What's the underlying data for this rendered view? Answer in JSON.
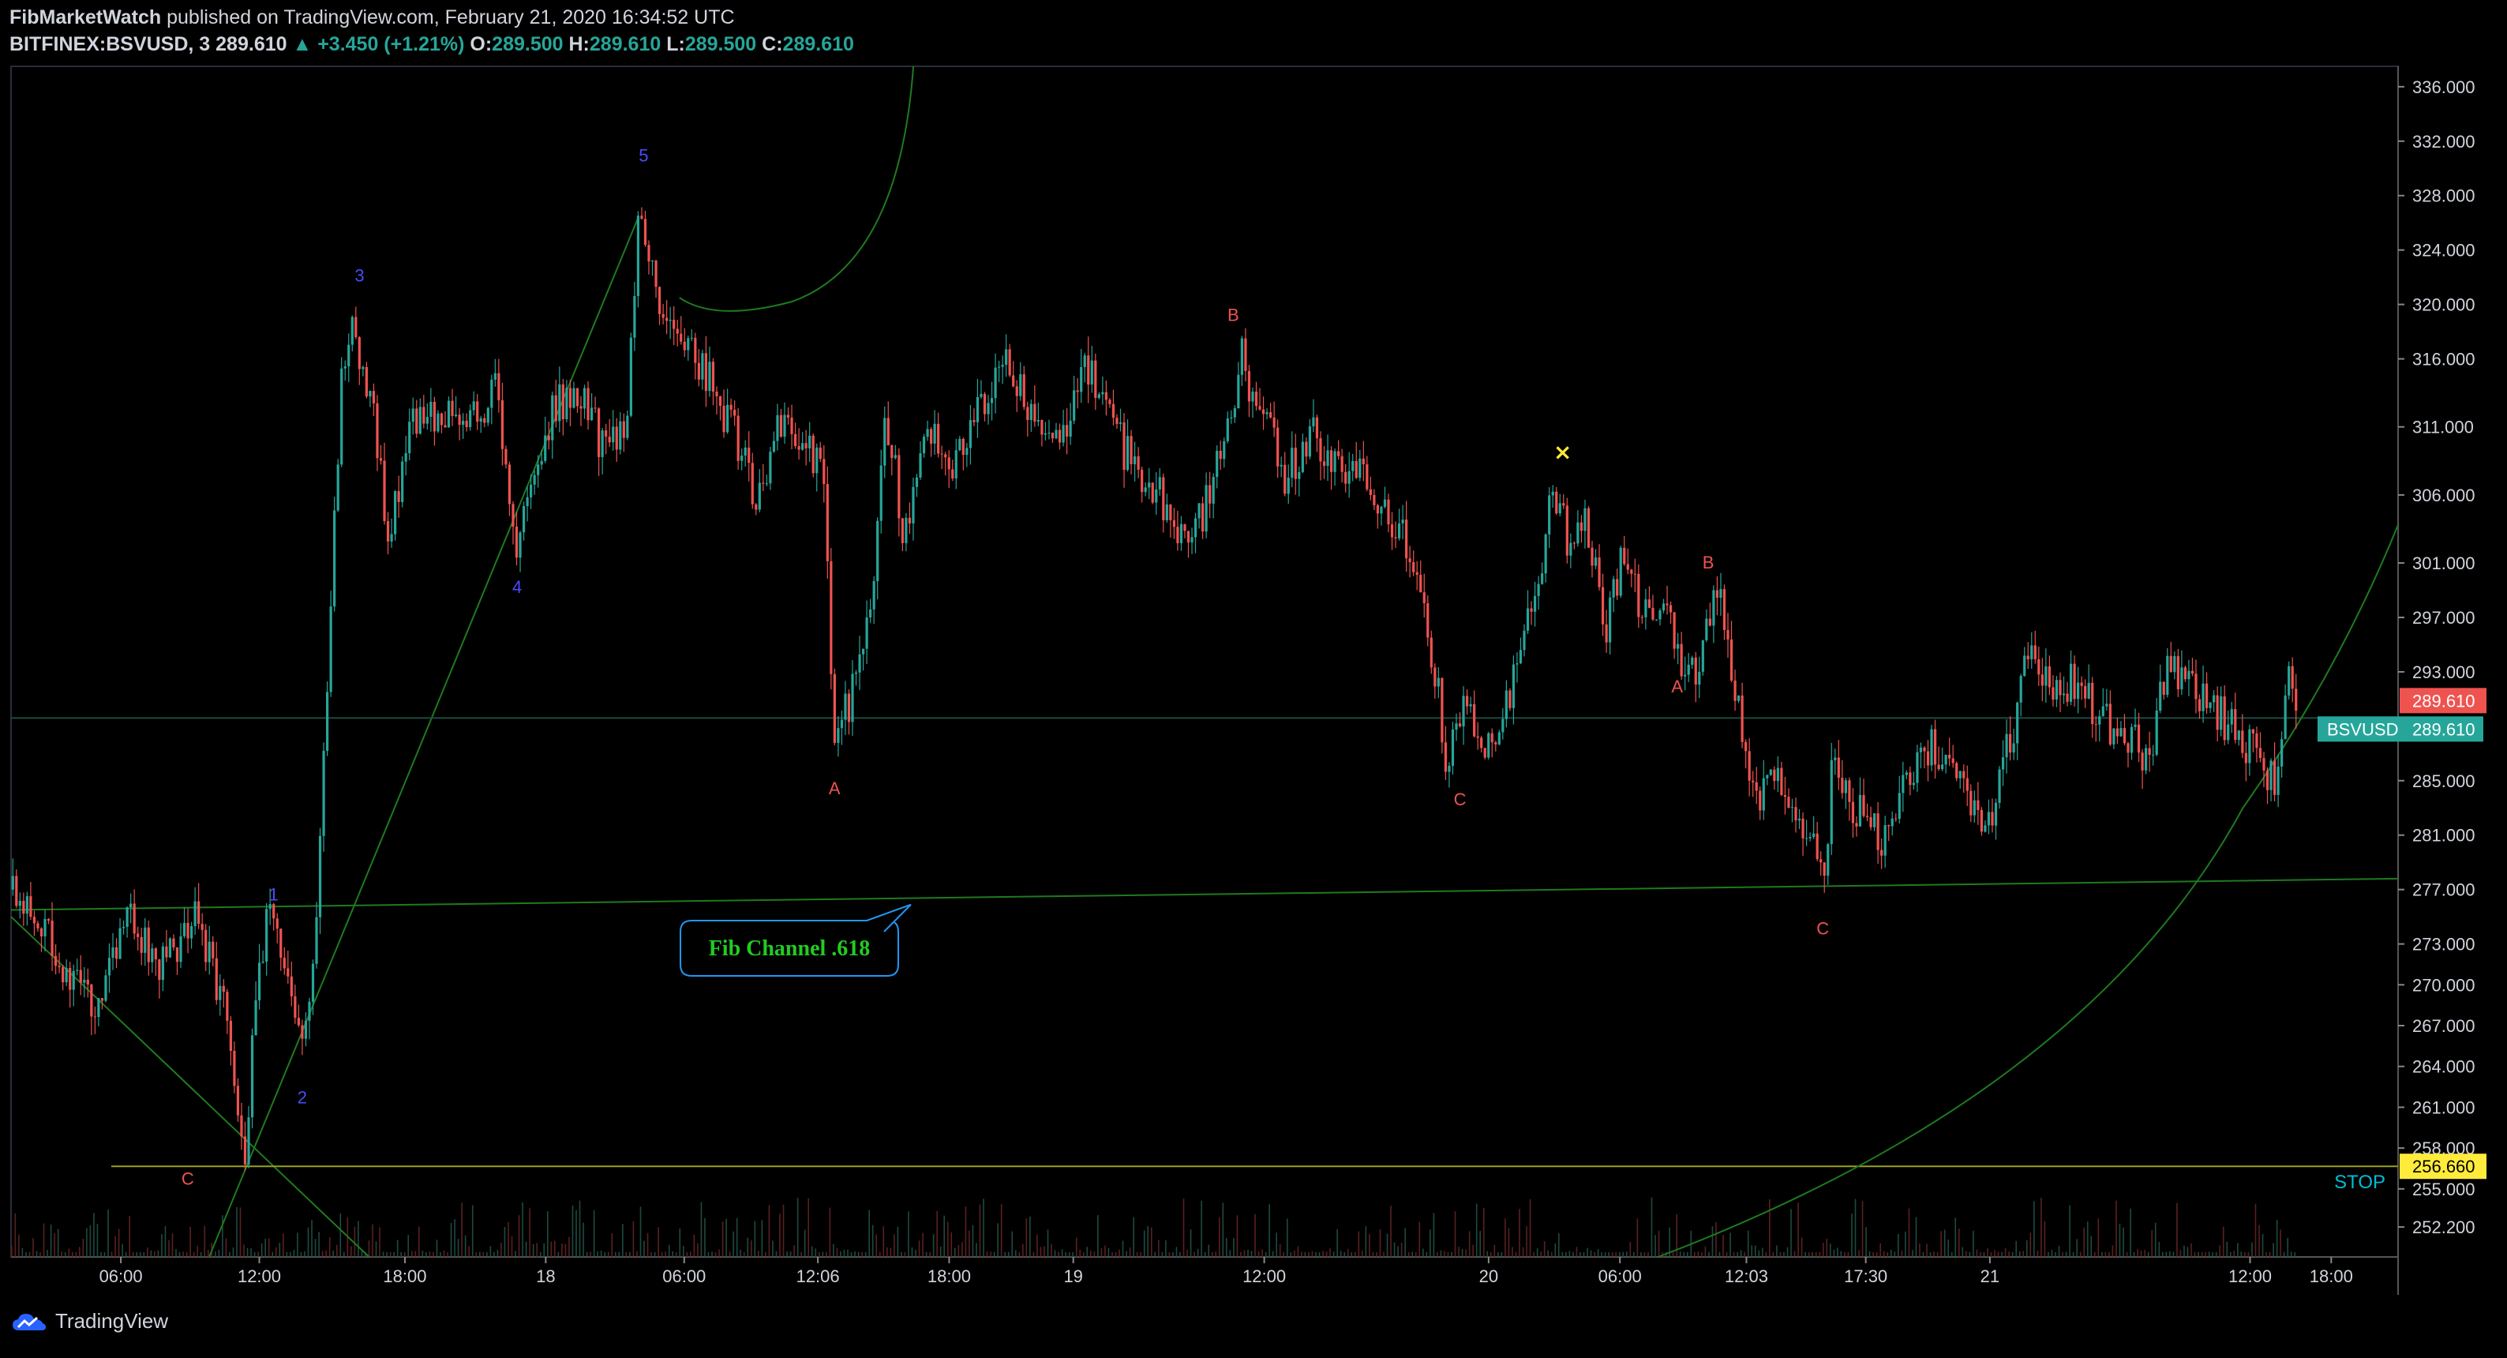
{
  "header": {
    "publisher": "FibMarketWatch",
    "published_text": "published on TradingView.com, February 21, 2020 16:34:52 UTC",
    "symbol": "BITFINEX:BSVUSD, 3",
    "last": "289.610",
    "change": "+3.450 (+1.21%)",
    "o_label": "O:",
    "o_value": "289.500",
    "h_label": "H:",
    "h_value": "289.610",
    "l_label": "L:",
    "l_value": "289.500",
    "c_label": "C:",
    "c_value": "289.610"
  },
  "footer": {
    "brand": "TradingView"
  },
  "colors": {
    "up": "#26a69a",
    "down": "#ef5350",
    "wave_label": "#4b4bff",
    "abc_label": "#ef5350",
    "fib_line": "#1f7a1f",
    "stop_line": "#9aa01f",
    "price_badge": "#ef5350",
    "symbol_badge": "#26a69a",
    "stop_badge": "#ffeb3b",
    "callout_border": "#2196f3",
    "callout_text": "#22cc22",
    "stop_text": "#00bcd4"
  },
  "chart_data": {
    "type": "candlestick",
    "y_axis": {
      "ylim": [
        250.0,
        337.5
      ],
      "ticks": [
        "336.000",
        "332.000",
        "328.000",
        "324.000",
        "320.000",
        "316.000",
        "311.000",
        "306.000",
        "301.000",
        "297.000",
        "293.000",
        "289.610",
        "285.000",
        "281.000",
        "277.000",
        "273.000",
        "270.000",
        "267.000",
        "264.000",
        "261.000",
        "258.000",
        "256.660",
        "255.000",
        "252.200"
      ],
      "tick_values": [
        336,
        332,
        328,
        324,
        320,
        316,
        311,
        306,
        301,
        297,
        293,
        289.61,
        285,
        281,
        277,
        273,
        270,
        267,
        264,
        261,
        258,
        256.66,
        255,
        252.2
      ]
    },
    "x_axis": {
      "ticks": [
        {
          "label": "06:00",
          "t": 0.046
        },
        {
          "label": "12:00",
          "t": 0.104
        },
        {
          "label": "18:00",
          "t": 0.165
        },
        {
          "label": "18",
          "t": 0.224
        },
        {
          "label": "06:00",
          "t": 0.282
        },
        {
          "label": "12:06",
          "t": 0.338
        },
        {
          "label": "18:00",
          "t": 0.393
        },
        {
          "label": "19",
          "t": 0.445
        },
        {
          "label": "12:00",
          "t": 0.525
        },
        {
          "label": "20",
          "t": 0.619
        },
        {
          "label": "06:00",
          "t": 0.674
        },
        {
          "label": "12:03",
          "t": 0.727
        },
        {
          "label": "17:30",
          "t": 0.777
        },
        {
          "label": "21",
          "t": 0.829
        },
        {
          "label": "12:00",
          "t": 0.938
        },
        {
          "label": "18:00",
          "t": 0.972
        }
      ]
    },
    "price_path": [
      [
        0.0,
        277.0
      ],
      [
        0.012,
        275.0
      ],
      [
        0.025,
        270.0
      ],
      [
        0.035,
        268.5
      ],
      [
        0.048,
        275.5
      ],
      [
        0.06,
        271.5
      ],
      [
        0.07,
        272.0
      ],
      [
        0.078,
        276.0
      ],
      [
        0.085,
        270.5
      ],
      [
        0.092,
        266.0
      ],
      [
        0.098,
        257.5
      ],
      [
        0.104,
        272.0
      ],
      [
        0.11,
        276.0
      ],
      [
        0.116,
        270.5
      ],
      [
        0.122,
        265.0
      ],
      [
        0.127,
        273.0
      ],
      [
        0.132,
        290.0
      ],
      [
        0.138,
        313.5
      ],
      [
        0.143,
        318.0
      ],
      [
        0.15,
        314.0
      ],
      [
        0.158,
        303.0
      ],
      [
        0.168,
        311.0
      ],
      [
        0.18,
        312.0
      ],
      [
        0.192,
        311.0
      ],
      [
        0.203,
        313.5
      ],
      [
        0.212,
        302.0
      ],
      [
        0.218,
        308.0
      ],
      [
        0.228,
        312.5
      ],
      [
        0.238,
        314.0
      ],
      [
        0.248,
        309.5
      ],
      [
        0.258,
        311.0
      ],
      [
        0.263,
        326.5
      ],
      [
        0.27,
        321.0
      ],
      [
        0.28,
        319.0
      ],
      [
        0.292,
        314.5
      ],
      [
        0.302,
        311.0
      ],
      [
        0.312,
        306.0
      ],
      [
        0.322,
        311.0
      ],
      [
        0.334,
        309.0
      ],
      [
        0.34,
        307.5
      ],
      [
        0.345,
        288.5
      ],
      [
        0.352,
        291.0
      ],
      [
        0.36,
        296.5
      ],
      [
        0.366,
        313.0
      ],
      [
        0.374,
        303.0
      ],
      [
        0.384,
        311.5
      ],
      [
        0.396,
        308.0
      ],
      [
        0.408,
        313.5
      ],
      [
        0.418,
        315.5
      ],
      [
        0.43,
        310.5
      ],
      [
        0.44,
        311.0
      ],
      [
        0.452,
        315.5
      ],
      [
        0.462,
        310.5
      ],
      [
        0.474,
        307.5
      ],
      [
        0.486,
        305.0
      ],
      [
        0.494,
        302.0
      ],
      [
        0.502,
        306.0
      ],
      [
        0.51,
        310.5
      ],
      [
        0.515,
        316.5
      ],
      [
        0.522,
        312.5
      ],
      [
        0.534,
        307.5
      ],
      [
        0.546,
        310.5
      ],
      [
        0.556,
        307.5
      ],
      [
        0.566,
        308.0
      ],
      [
        0.578,
        304.5
      ],
      [
        0.59,
        300.0
      ],
      [
        0.596,
        293.5
      ],
      [
        0.602,
        286.0
      ],
      [
        0.608,
        290.0
      ],
      [
        0.616,
        288.0
      ],
      [
        0.624,
        289.0
      ],
      [
        0.632,
        294.0
      ],
      [
        0.64,
        299.0
      ],
      [
        0.646,
        306.5
      ],
      [
        0.652,
        303.0
      ],
      [
        0.66,
        304.0
      ],
      [
        0.668,
        295.5
      ],
      [
        0.676,
        302.5
      ],
      [
        0.684,
        297.0
      ],
      [
        0.694,
        298.5
      ],
      [
        0.7,
        292.0
      ],
      [
        0.708,
        293.5
      ],
      [
        0.714,
        300.5
      ],
      [
        0.722,
        292.5
      ],
      [
        0.73,
        283.0
      ],
      [
        0.738,
        285.5
      ],
      [
        0.746,
        283.0
      ],
      [
        0.754,
        281.5
      ],
      [
        0.76,
        279.0
      ],
      [
        0.764,
        288.0
      ],
      [
        0.77,
        283.0
      ],
      [
        0.778,
        283.0
      ],
      [
        0.784,
        280.5
      ],
      [
        0.794,
        285.0
      ],
      [
        0.804,
        287.5
      ],
      [
        0.814,
        286.0
      ],
      [
        0.822,
        283.0
      ],
      [
        0.83,
        282.5
      ],
      [
        0.838,
        288.5
      ],
      [
        0.846,
        294.5
      ],
      [
        0.856,
        291.5
      ],
      [
        0.866,
        292.5
      ],
      [
        0.876,
        289.5
      ],
      [
        0.886,
        288.0
      ],
      [
        0.896,
        287.0
      ],
      [
        0.904,
        294.0
      ],
      [
        0.912,
        292.0
      ],
      [
        0.922,
        290.5
      ],
      [
        0.932,
        288.5
      ],
      [
        0.942,
        287.0
      ],
      [
        0.948,
        284.5
      ],
      [
        0.954,
        292.5
      ],
      [
        0.958,
        289.6
      ]
    ],
    "wave_labels": [
      {
        "text": "1",
        "t": 0.11,
        "y": 276.2
      },
      {
        "text": "2",
        "t": 0.122,
        "y": 261.3
      },
      {
        "text": "3",
        "t": 0.146,
        "y": 321.7
      },
      {
        "text": "4",
        "t": 0.212,
        "y": 298.8
      },
      {
        "text": "5",
        "t": 0.265,
        "y": 330.5
      }
    ],
    "abc_labels": [
      {
        "text": "C",
        "t": 0.074,
        "y": 255.3
      },
      {
        "text": "A",
        "t": 0.345,
        "y": 284.0
      },
      {
        "text": "B",
        "t": 0.512,
        "y": 318.8
      },
      {
        "text": "C",
        "t": 0.607,
        "y": 283.2
      },
      {
        "text": "A",
        "t": 0.698,
        "y": 291.5
      },
      {
        "text": "B",
        "t": 0.711,
        "y": 300.6
      },
      {
        "text": "C",
        "t": 0.759,
        "y": 273.7
      }
    ],
    "x_marker": {
      "text": "×",
      "t": 0.65,
      "y": 308.6
    },
    "callout": {
      "text": "Fib Channel .618"
    },
    "stop": {
      "label": "STOP",
      "value": 256.66
    },
    "last_price": {
      "value": 289.61,
      "label": "289.610",
      "symbol": "BSVUSD"
    }
  }
}
